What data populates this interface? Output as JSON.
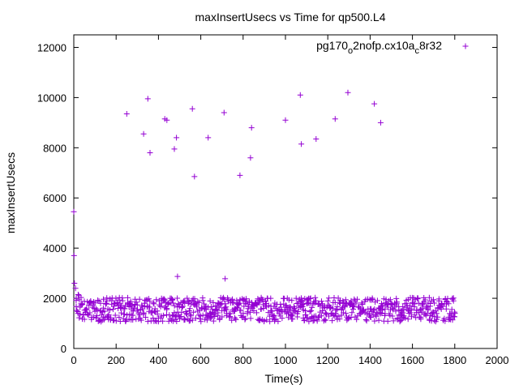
{
  "chart_data": {
    "type": "scatter",
    "title": "maxInsertUsecs vs Time for qp500.L4",
    "xlabel": "Time(s)",
    "ylabel": "maxInsertUsecs",
    "xlim": [
      0,
      2000
    ],
    "ylim": [
      0,
      12500
    ],
    "xticks": [
      0,
      200,
      400,
      600,
      800,
      1000,
      1200,
      1400,
      1600,
      1800,
      2000
    ],
    "yticks": [
      0,
      2000,
      4000,
      6000,
      8000,
      10000,
      12000
    ],
    "grid": false,
    "legend_position": "top-right",
    "marker": "plus",
    "color": "#9400d3",
    "legend": {
      "base": "pg170",
      "sub1": "o",
      "mid": "2nofp.cx10a",
      "sub2": "c",
      "tail": "8r32"
    },
    "series": [
      {
        "name": "pg170_o2nofp.cx10a_c8r32",
        "outliers": [
          [
            0,
            5450
          ],
          [
            1,
            3700
          ],
          [
            3,
            2600
          ],
          [
            8,
            2400
          ],
          [
            250,
            9350
          ],
          [
            330,
            8550
          ],
          [
            350,
            9950
          ],
          [
            360,
            7800
          ],
          [
            430,
            9150
          ],
          [
            440,
            9100
          ],
          [
            475,
            7950
          ],
          [
            485,
            8400
          ],
          [
            490,
            2870
          ],
          [
            560,
            9550
          ],
          [
            570,
            6850
          ],
          [
            635,
            8400
          ],
          [
            710,
            9400
          ],
          [
            715,
            2780
          ],
          [
            785,
            6900
          ],
          [
            835,
            7600
          ],
          [
            840,
            8800
          ],
          [
            1000,
            9100
          ],
          [
            1070,
            10100
          ],
          [
            1075,
            8150
          ],
          [
            1145,
            8350
          ],
          [
            1235,
            9150
          ],
          [
            1295,
            10200
          ],
          [
            1420,
            9750
          ],
          [
            1450,
            9000
          ]
        ],
        "bulk": {
          "x_range": [
            10,
            1800
          ],
          "interval_s": 5,
          "bands_y": [
            1200,
            1450,
            1700,
            1900
          ],
          "typical_range": [
            1050,
            2150
          ]
        }
      }
    ]
  }
}
